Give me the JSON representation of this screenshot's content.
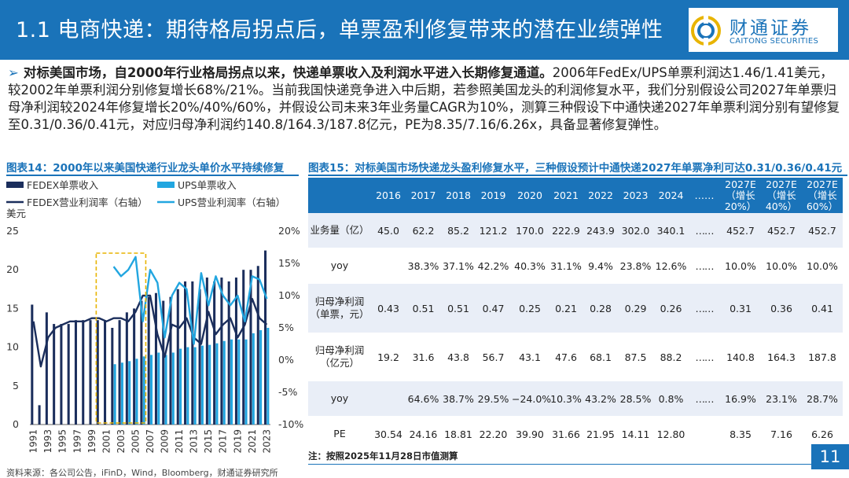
{
  "header": {
    "title": "1.1 电商快递：期待格局拐点后，单票盈利修复带来的潜在业绩弹性",
    "logo_cn": "财通证券",
    "logo_en": "CAITONG SECURITIES"
  },
  "summary": {
    "bullet": "➢",
    "lead": "对标美国市场，自2000年行业格局拐点以来，快递单票收入及利润水平进入长期修复通道。",
    "body": "2006年FedEx/UPS单票利润达1.46/1.41美元，较2002年单票利润分别修复增长68%/21%。当前我国快递竞争进入中后期，若参照美国龙头的利润修复水平，我们分别假设公司2027年单票归母净利润较2024年修复增长20%/40%/60%，并假设公司未来3年业务量CAGR为10%，测算三种假设下中通快递2027年单票利润分别有望修复至0.31/0.36/0.41元，对应归母净利润约140.8/164.3/187.8亿元，PE为8.35/7.16/6.26x，具备显著修复弹性。"
  },
  "figure_left": {
    "title": "图表14：2000年以来美国快递行业龙头单价水平持续修复"
  },
  "figure_right": {
    "title": "图表15：对标美国市场快递龙头盈利修复水平，三种假设预计中通快递2027年单票净利可达0.31/0.36/0.41元"
  },
  "chart_data": {
    "type": "bar",
    "xlabel": "",
    "ylabel": "美元",
    "ylim": [
      0,
      25
    ],
    "y2lim": [
      -0.1,
      0.2
    ],
    "yticks": [
      "0",
      "5",
      "10",
      "15",
      "20",
      "25"
    ],
    "y2ticks": [
      "-10%",
      "-5%",
      "0%",
      "5%",
      "10%",
      "15%",
      "20%"
    ],
    "x": [
      1991,
      1992,
      1993,
      1994,
      1995,
      1996,
      1997,
      1998,
      1999,
      2000,
      2001,
      2002,
      2003,
      2004,
      2005,
      2006,
      2007,
      2008,
      2009,
      2010,
      2011,
      2012,
      2013,
      2014,
      2015,
      2016,
      2017,
      2018,
      2019,
      2020,
      2021,
      2022,
      2023
    ],
    "xtick_labels": [
      "1991",
      "1993",
      "1995",
      "1997",
      "1999",
      "2001",
      "2003",
      "2005",
      "2007",
      "2009",
      "2011",
      "2013",
      "2015",
      "2017",
      "2019",
      "2021",
      "2023"
    ],
    "legend_position": "top",
    "series": [
      {
        "name": "FEDEX单票收入",
        "kind": "bar",
        "axis": "left",
        "color": "#1b2e5c",
        "values": [
          15.5,
          2.5,
          14.5,
          13,
          13,
          13,
          13.5,
          13.5,
          13.5,
          13.5,
          13.5,
          12.5,
          13.5,
          14.5,
          15,
          16,
          16.5,
          17,
          16,
          16.5,
          17.5,
          18.5,
          18.5,
          17.5,
          19,
          18.5,
          19,
          18.5,
          19,
          20,
          20,
          20.5,
          22.5
        ]
      },
      {
        "name": "UPS单票收入",
        "kind": "bar",
        "axis": "left",
        "color": "#22a6e0",
        "values": [
          null,
          null,
          null,
          null,
          null,
          null,
          null,
          null,
          null,
          null,
          null,
          7.8,
          8.0,
          8.2,
          8.5,
          8.8,
          9.0,
          9.3,
          9.0,
          9.3,
          9.8,
          10.0,
          10.0,
          10.2,
          10.3,
          10.5,
          10.8,
          11.0,
          11.0,
          11.0,
          11.8,
          12.2,
          12.5
        ]
      },
      {
        "name": "FEDEX营业利润率（右轴）",
        "kind": "line",
        "axis": "right",
        "color": "#1b2e5c",
        "values": [
          0.06,
          -0.01,
          0.035,
          0.05,
          0.055,
          0.06,
          0.06,
          0.06,
          0.065,
          0.065,
          0.06,
          0.065,
          0.065,
          0.06,
          0.075,
          0.1,
          0.1,
          0.04,
          0.005,
          0.055,
          0.05,
          0.065,
          0.035,
          0.025,
          0.075,
          0.04,
          0.055,
          0.065,
          0.035,
          0.055,
          0.095,
          0.065,
          0.055
        ]
      },
      {
        "name": "UPS营业利润率（右轴）",
        "kind": "line",
        "axis": "right",
        "color": "#22a6e0",
        "values": [
          null,
          null,
          null,
          null,
          null,
          null,
          null,
          null,
          null,
          null,
          null,
          0.145,
          0.13,
          0.14,
          0.16,
          0.06,
          0.14,
          0.12,
          0.035,
          0.1,
          0.12,
          0.11,
          0.025,
          0.135,
          0.085,
          0.13,
          0.1,
          0.085,
          0.1,
          0.06,
          0.13,
          0.125,
          0.095
        ]
      }
    ],
    "annotation": {
      "kind": "dashed-box",
      "color": "#e8b400",
      "x_range": [
        2000,
        2006
      ]
    }
  },
  "table": {
    "headers": [
      "",
      "2016",
      "2017",
      "2018",
      "2019",
      "2020",
      "2021",
      "2022",
      "2023",
      "2024",
      "……",
      "2027E\n（增长\n20%）",
      "2027E\n（增长\n40%）",
      "2027E\n（增长\n60%）"
    ],
    "rows": [
      [
        "业务量（亿）",
        "45.0",
        "62.2",
        "85.2",
        "121.2",
        "170.0",
        "222.9",
        "243.9",
        "302.0",
        "340.1",
        "……",
        "452.7",
        "452.7",
        "452.7"
      ],
      [
        "yoy",
        "",
        "38.3%",
        "37.1%",
        "42.2%",
        "40.3%",
        "31.1%",
        "9.4%",
        "23.8%",
        "12.6%",
        "……",
        "10.0%",
        "10.0%",
        "10.0%"
      ],
      [
        "归母净利润\n（单票，元）",
        "0.43",
        "0.51",
        "0.51",
        "0.47",
        "0.25",
        "0.21",
        "0.28",
        "0.29",
        "0.26",
        "……",
        "0.31",
        "0.36",
        "0.41"
      ],
      [
        "归母净利润\n（亿元）",
        "19.2",
        "31.6",
        "43.8",
        "56.7",
        "43.1",
        "47.6",
        "68.1",
        "87.5",
        "88.2",
        "……",
        "140.8",
        "164.3",
        "187.8"
      ],
      [
        "yoy",
        "",
        "64.6%",
        "38.7%",
        "29.5%",
        "−24.0%",
        "10.3%",
        "43.2%",
        "28.5%",
        "0.8%",
        "……",
        "16.9%",
        "23.1%",
        "28.7%"
      ],
      [
        "PE",
        "30.54",
        "24.16",
        "18.81",
        "22.20",
        "39.90",
        "31.66",
        "21.95",
        "14.11",
        "12.80",
        "",
        "8.35",
        "7.16",
        "6.26"
      ]
    ]
  },
  "note": "注：按照2025年11月28日市值测算",
  "source": "资料来源：各公司公告，iFinD，Wind，Bloomberg，财通证券研究所",
  "page_number": "11",
  "colors": {
    "brand_blue": "#1a73b9",
    "navy": "#1b2e5c",
    "sky": "#22a6e0",
    "stripe": "#e9eef7",
    "highlight": "#e8b400"
  }
}
